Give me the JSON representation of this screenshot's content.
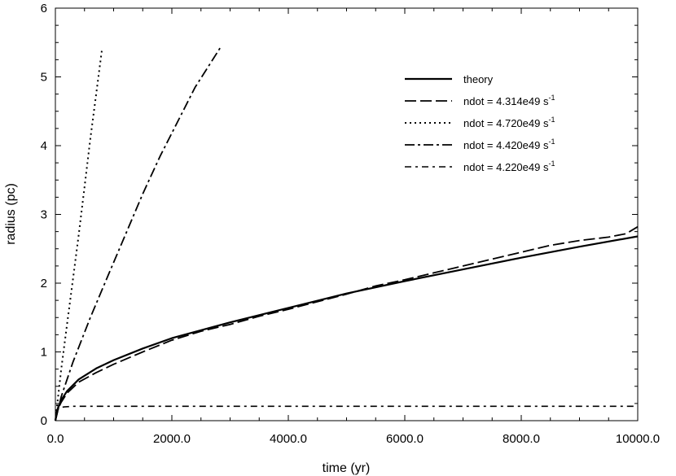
{
  "chart_data": {
    "type": "line",
    "xlabel": "time (yr)",
    "ylabel": "radius (pc)",
    "xlim": [
      0,
      10000
    ],
    "ylim": [
      0,
      6
    ],
    "xticks": [
      0,
      2000,
      4000,
      6000,
      8000,
      10000
    ],
    "xtick_labels": [
      "0.0",
      "2000.0",
      "4000.0",
      "6000.0",
      "8000.0",
      "10000.0"
    ],
    "yticks": [
      0,
      1,
      2,
      3,
      4,
      5,
      6
    ],
    "ytick_labels": [
      "0",
      "1",
      "2",
      "3",
      "4",
      "5",
      "6"
    ],
    "grid": false,
    "legend_position": "top-right",
    "series": [
      {
        "name": "theory",
        "legend_text": "theory",
        "legend_sup": "",
        "style": "solid",
        "x": [
          0,
          20,
          50,
          100,
          200,
          400,
          700,
          1000,
          1500,
          2000,
          3000,
          4000,
          5000,
          6000,
          7000,
          8000,
          9000,
          10000
        ],
        "y": [
          0.0,
          0.12,
          0.2,
          0.3,
          0.43,
          0.6,
          0.76,
          0.88,
          1.05,
          1.2,
          1.43,
          1.64,
          1.85,
          2.03,
          2.2,
          2.37,
          2.53,
          2.68
        ]
      },
      {
        "name": "ndot = 4.314e49 s-1",
        "legend_text": "ndot = 4.314e49 s",
        "legend_sup": "-1",
        "style": "dashed",
        "x": [
          0,
          50,
          100,
          200,
          400,
          700,
          1000,
          1500,
          2000,
          2500,
          3000,
          3500,
          4000,
          4500,
          5000,
          5500,
          6000,
          6500,
          7000,
          7500,
          8000,
          8500,
          9000,
          9500,
          9800,
          10000
        ],
        "y": [
          0.0,
          0.18,
          0.27,
          0.4,
          0.56,
          0.7,
          0.82,
          1.0,
          1.17,
          1.3,
          1.4,
          1.52,
          1.62,
          1.73,
          1.84,
          1.96,
          2.05,
          2.15,
          2.25,
          2.35,
          2.45,
          2.55,
          2.62,
          2.67,
          2.72,
          2.82
        ]
      },
      {
        "name": "ndot = 4.720e49 s-1",
        "legend_text": "ndot = 4.720e49 s",
        "legend_sup": "-1",
        "style": "dotted",
        "x": [
          0,
          100,
          200,
          300,
          400,
          500,
          600,
          700,
          800
        ],
        "y": [
          0.0,
          0.75,
          1.4,
          2.05,
          2.7,
          3.4,
          4.1,
          4.75,
          5.4
        ]
      },
      {
        "name": "ndot = 4.420e49 s-1",
        "legend_text": "ndot = 4.420e49 s",
        "legend_sup": "-1",
        "style": "dashdot",
        "x": [
          0,
          100,
          300,
          600,
          900,
          1200,
          1500,
          1800,
          2100,
          2400,
          2700,
          2850
        ],
        "y": [
          0.0,
          0.35,
          0.85,
          1.5,
          2.1,
          2.7,
          3.3,
          3.85,
          4.35,
          4.85,
          5.25,
          5.45
        ]
      },
      {
        "name": "ndot = 4.220e49 s-1",
        "legend_text": "ndot = 4.220e49 s",
        "legend_sup": "-1",
        "style": "dashdot-short",
        "x": [
          0,
          30,
          80,
          150,
          300,
          1000,
          3000,
          6000,
          9000,
          10000
        ],
        "y": [
          0.0,
          0.15,
          0.19,
          0.2,
          0.21,
          0.21,
          0.21,
          0.21,
          0.21,
          0.21
        ]
      }
    ]
  }
}
